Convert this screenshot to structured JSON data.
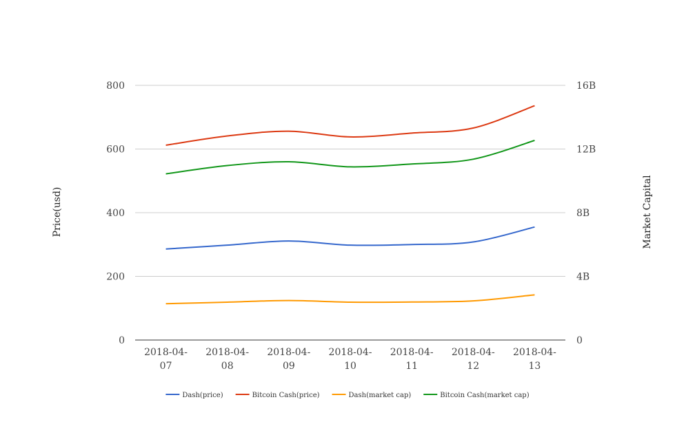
{
  "chart_data": {
    "type": "line",
    "categories": [
      [
        "2018-04-",
        "07"
      ],
      [
        "2018-04-",
        "08"
      ],
      [
        "2018-04-",
        "09"
      ],
      [
        "2018-04-",
        "10"
      ],
      [
        "2018-04-",
        "11"
      ],
      [
        "2018-04-",
        "12"
      ],
      [
        "2018-04-",
        "13"
      ]
    ],
    "ylabel_left": "Price(usd)",
    "ylabel_right": "Market Capital",
    "left_axis": {
      "min": 0,
      "max": 800,
      "ticks": [
        "0",
        "200",
        "400",
        "600",
        "800"
      ]
    },
    "right_axis": {
      "min": 0,
      "max": 16000000000,
      "ticks": [
        "0",
        "4B",
        "8B",
        "12B",
        "16B"
      ]
    },
    "grid": true,
    "legend_position": "bottom",
    "series": [
      {
        "name": "Dash(price)",
        "axis": "left",
        "color": "#3366cc",
        "values": [
          286,
          298,
          311,
          298,
          300,
          308,
          355
        ]
      },
      {
        "name": "Bitcoin Cash(price)",
        "axis": "left",
        "color": "#dc3912",
        "values": [
          612,
          641,
          656,
          638,
          650,
          666,
          736
        ]
      },
      {
        "name": "Dash(market cap)",
        "axis": "right",
        "color": "#ff9900",
        "values": [
          2280000000,
          2380000000,
          2480000000,
          2380000000,
          2390000000,
          2460000000,
          2840000000
        ]
      },
      {
        "name": "Bitcoin Cash(market cap)",
        "axis": "right",
        "color": "#109618",
        "values": [
          10440000000,
          10960000000,
          11200000000,
          10880000000,
          11060000000,
          11360000000,
          12540000000
        ]
      }
    ]
  }
}
